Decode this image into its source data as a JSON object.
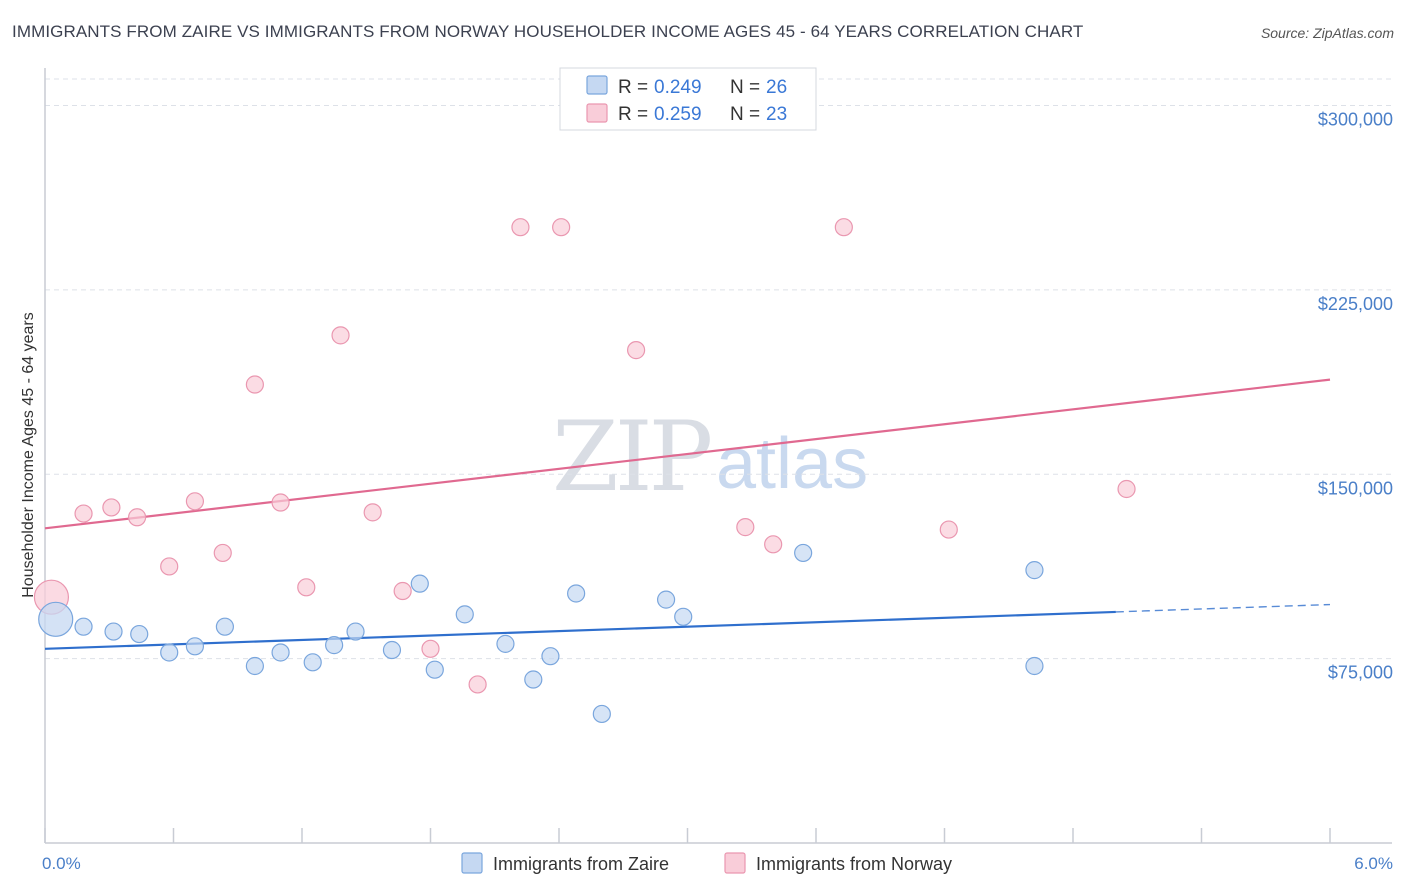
{
  "title": "IMMIGRANTS FROM ZAIRE VS IMMIGRANTS FROM NORWAY HOUSEHOLDER INCOME AGES 45 - 64 YEARS CORRELATION CHART",
  "source": "Source: ZipAtlas.com",
  "watermark": {
    "zip": "ZIP",
    "atlas": "atlas"
  },
  "legend": {
    "rows": [
      {
        "r_label": "R =",
        "r_value": "0.249",
        "n_label": "N =",
        "n_value": "26"
      },
      {
        "r_label": "R =",
        "r_value": "0.259",
        "n_label": "N =",
        "n_value": "23"
      }
    ]
  },
  "chart_data": {
    "type": "scatter",
    "title": "IMMIGRANTS FROM ZAIRE VS IMMIGRANTS FROM NORWAY HOUSEHOLDER INCOME AGES 45 - 64 YEARS CORRELATION CHART",
    "xlabel": "",
    "ylabel": "Householder Income Ages 45 - 64 years",
    "xlim": [
      0,
      6
    ],
    "ylim": [
      0,
      312000
    ],
    "x_tick_labels": [
      {
        "value": 0,
        "label": "0.0%"
      },
      {
        "value": 6,
        "label": "6.0%"
      }
    ],
    "y_ticks": [
      {
        "value": 75000,
        "label": "$75,000"
      },
      {
        "value": 150000,
        "label": "$150,000"
      },
      {
        "value": 225000,
        "label": "$225,000"
      },
      {
        "value": 300000,
        "label": "$300,000"
      }
    ],
    "colors": {
      "zaire_fill": "#c5d8f2",
      "zaire_stroke": "#7aa6dd",
      "zaire_line": "#2f6fcd",
      "norway_fill": "#f9cdd9",
      "norway_stroke": "#ea97b0",
      "norway_line": "#e06990",
      "grid": "#dde1e8",
      "axis": "#c8ccd4"
    },
    "series": [
      {
        "name": "Immigrants from Zaire",
        "r": 0.249,
        "n": 26,
        "trend": {
          "x0": 0,
          "y0": 79000,
          "x1": 6,
          "y1": 97000,
          "solid_until": 5.0
        },
        "points": [
          {
            "x": 0.05,
            "y": 91000,
            "big": true
          },
          {
            "x": 0.18,
            "y": 88000
          },
          {
            "x": 0.32,
            "y": 86000
          },
          {
            "x": 0.44,
            "y": 85000
          },
          {
            "x": 0.58,
            "y": 77500
          },
          {
            "x": 0.7,
            "y": 80000
          },
          {
            "x": 0.84,
            "y": 88000
          },
          {
            "x": 0.98,
            "y": 72000
          },
          {
            "x": 1.1,
            "y": 77500
          },
          {
            "x": 1.25,
            "y": 73500
          },
          {
            "x": 1.35,
            "y": 80500
          },
          {
            "x": 1.45,
            "y": 86000
          },
          {
            "x": 1.62,
            "y": 78500
          },
          {
            "x": 1.75,
            "y": 105500
          },
          {
            "x": 1.82,
            "y": 70500
          },
          {
            "x": 1.96,
            "y": 93000
          },
          {
            "x": 2.15,
            "y": 81000
          },
          {
            "x": 2.28,
            "y": 66500
          },
          {
            "x": 2.36,
            "y": 76000
          },
          {
            "x": 2.48,
            "y": 101500
          },
          {
            "x": 2.6,
            "y": 52500
          },
          {
            "x": 2.9,
            "y": 99000
          },
          {
            "x": 2.98,
            "y": 92000
          },
          {
            "x": 3.54,
            "y": 118000
          },
          {
            "x": 4.62,
            "y": 72000
          },
          {
            "x": 4.62,
            "y": 111000
          }
        ]
      },
      {
        "name": "Immigrants from Norway",
        "r": 0.259,
        "n": 23,
        "trend": {
          "x0": 0,
          "y0": 128000,
          "x1": 6,
          "y1": 188500
        },
        "points": [
          {
            "x": 0.03,
            "y": 100000,
            "big": true
          },
          {
            "x": 0.18,
            "y": 134000
          },
          {
            "x": 0.31,
            "y": 136500
          },
          {
            "x": 0.43,
            "y": 132500
          },
          {
            "x": 0.58,
            "y": 112500
          },
          {
            "x": 0.7,
            "y": 139000
          },
          {
            "x": 0.83,
            "y": 118000
          },
          {
            "x": 0.98,
            "y": 186500
          },
          {
            "x": 1.1,
            "y": 138500
          },
          {
            "x": 1.22,
            "y": 104000
          },
          {
            "x": 1.38,
            "y": 206500
          },
          {
            "x": 1.53,
            "y": 134500
          },
          {
            "x": 1.67,
            "y": 102500
          },
          {
            "x": 1.8,
            "y": 79000
          },
          {
            "x": 2.02,
            "y": 64500
          },
          {
            "x": 2.22,
            "y": 250500
          },
          {
            "x": 2.41,
            "y": 250500
          },
          {
            "x": 2.76,
            "y": 200500
          },
          {
            "x": 3.27,
            "y": 128500
          },
          {
            "x": 3.4,
            "y": 121500
          },
          {
            "x": 3.73,
            "y": 250500
          },
          {
            "x": 4.22,
            "y": 127500
          },
          {
            "x": 5.05,
            "y": 144000
          }
        ]
      }
    ]
  }
}
